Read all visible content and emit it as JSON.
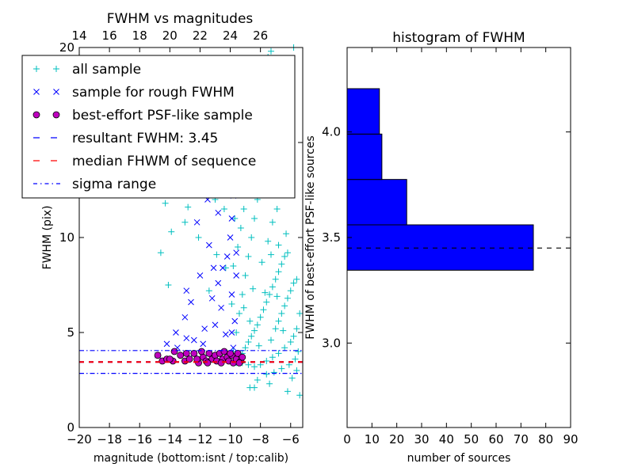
{
  "chart_data": [
    {
      "type": "scatter",
      "title": "FWHM vs magnitudes",
      "xlabel": "magnitude (bottom:isnt / top:calib)",
      "ylabel": "FWHM (pix)",
      "xlim": [
        -20,
        -5.2
      ],
      "ylim": [
        0,
        20
      ],
      "x_ticks": [
        -20,
        -18,
        -16,
        -14,
        -12,
        -10,
        -8,
        -6
      ],
      "x_tick_labels": [
        "−20",
        "−18",
        "−16",
        "−14",
        "−12",
        "−10",
        "−8",
        "−6"
      ],
      "y_ticks": [
        0,
        5,
        10,
        15,
        20
      ],
      "y_tick_labels": [
        "0",
        "5",
        "10",
        "15",
        "20"
      ],
      "top_x_ticks": [
        14,
        16,
        18,
        20,
        22,
        24,
        26
      ],
      "top_x_offset": 34,
      "legend_position": "upper-left",
      "series": [
        {
          "name": "all sample",
          "marker": "+",
          "color": "#00bfbf",
          "points": [
            [
              -9.6,
              3.4
            ],
            [
              -9.4,
              3.6
            ],
            [
              -9.2,
              3.9
            ],
            [
              -9.0,
              4.2
            ],
            [
              -8.8,
              4.5
            ],
            [
              -8.6,
              4.8
            ],
            [
              -8.4,
              5.1
            ],
            [
              -8.2,
              5.4
            ],
            [
              -8.0,
              5.8
            ],
            [
              -7.8,
              6.2
            ],
            [
              -7.6,
              6.6
            ],
            [
              -7.4,
              7.0
            ],
            [
              -7.2,
              7.4
            ],
            [
              -7.0,
              7.8
            ],
            [
              -6.8,
              8.2
            ],
            [
              -6.6,
              8.6
            ],
            [
              -6.4,
              9.0
            ],
            [
              -6.2,
              9.2
            ],
            [
              -9.8,
              4.0
            ],
            [
              -9.6,
              5.0
            ],
            [
              -9.4,
              6.0
            ],
            [
              -9.2,
              7.0
            ],
            [
              -9.0,
              8.0
            ],
            [
              -8.8,
              9.0
            ],
            [
              -8.6,
              10.0
            ],
            [
              -8.4,
              11.0
            ],
            [
              -8.2,
              12.0
            ],
            [
              -8.0,
              13.0
            ],
            [
              -7.8,
              14.0
            ],
            [
              -7.6,
              15.0
            ],
            [
              -9.5,
              9.5
            ],
            [
              -9.3,
              10.5
            ],
            [
              -9.1,
              11.5
            ],
            [
              -8.9,
              12.5
            ],
            [
              -8.7,
              13.5
            ],
            [
              -8.5,
              14.5
            ],
            [
              -8.3,
              15.5
            ],
            [
              -8.1,
              16.5
            ],
            [
              -7.9,
              17.5
            ],
            [
              -7.7,
              18.5
            ],
            [
              -7.5,
              19.5
            ],
            [
              -7.3,
              19.8
            ],
            [
              -7.0,
              5.2
            ],
            [
              -6.8,
              5.6
            ],
            [
              -6.6,
              6.0
            ],
            [
              -6.4,
              6.4
            ],
            [
              -6.2,
              6.8
            ],
            [
              -6.0,
              7.2
            ],
            [
              -5.8,
              7.6
            ],
            [
              -5.6,
              7.8
            ],
            [
              -5.4,
              6.0
            ],
            [
              -5.6,
              5.2
            ],
            [
              -5.8,
              4.8
            ],
            [
              -6.0,
              4.5
            ],
            [
              -6.4,
              4.2
            ],
            [
              -6.8,
              3.9
            ],
            [
              -7.2,
              3.7
            ],
            [
              -7.6,
              3.5
            ],
            [
              -8.0,
              3.3
            ],
            [
              -8.4,
              3.2
            ],
            [
              -8.8,
              3.3
            ],
            [
              -9.2,
              3.4
            ],
            [
              -5.5,
              4.0
            ],
            [
              -5.7,
              3.6
            ],
            [
              -6.1,
              3.3
            ],
            [
              -6.6,
              3.1
            ],
            [
              -7.1,
              2.9
            ],
            [
              -7.6,
              2.8
            ],
            [
              -8.2,
              2.5
            ],
            [
              -8.4,
              2.1
            ],
            [
              -5.6,
              3.0
            ],
            [
              -5.9,
              2.6
            ],
            [
              -5.4,
              1.7
            ],
            [
              -9.9,
              6.5
            ],
            [
              -9.8,
              8.5
            ],
            [
              -9.7,
              11.0
            ],
            [
              -9.6,
              13.0
            ],
            [
              -9.5,
              15.5
            ],
            [
              -9.4,
              17.5
            ],
            [
              -9.7,
              19.0
            ],
            [
              -9.9,
              14.0
            ],
            [
              -7.5,
              9.8
            ],
            [
              -7.2,
              10.8
            ],
            [
              -6.9,
              11.5
            ],
            [
              -6.7,
              12.5
            ],
            [
              -7.1,
              13.6
            ],
            [
              -7.4,
              16.0
            ],
            [
              -7.8,
              18.0
            ],
            [
              -8.6,
              17.0
            ],
            [
              -8.9,
              15.8
            ],
            [
              -7.9,
              8.7
            ],
            [
              -7.3,
              9.1
            ],
            [
              -6.8,
              9.6
            ],
            [
              -6.3,
              10.2
            ],
            [
              -8.5,
              7.3
            ],
            [
              -7.7,
              7.1
            ],
            [
              -6.9,
              6.9
            ],
            [
              -6.5,
              5.1
            ],
            [
              -7.3,
              4.6
            ],
            [
              -8.1,
              4.3
            ],
            [
              -8.7,
              5.6
            ],
            [
              -9.1,
              6.3
            ],
            [
              -10.2,
              16.0
            ],
            [
              -10.4,
              11.5
            ],
            [
              -11.0,
              12.0
            ],
            [
              -12.5,
              13.0
            ],
            [
              -13.4,
              14.5
            ],
            [
              -14.6,
              9.2
            ],
            [
              -14.3,
              11.8
            ],
            [
              -13.9,
              10.3
            ],
            [
              -14.1,
              7.5
            ],
            [
              -13.0,
              10.8
            ],
            [
              -12.1,
              10.0
            ],
            [
              -11.4,
              7.2
            ],
            [
              -11.6,
              12.5
            ],
            [
              -10.9,
              9.1
            ],
            [
              -10.7,
              14.3
            ],
            [
              -10.3,
              8.4
            ],
            [
              -13.6,
              13.4
            ],
            [
              -12.8,
              11.6
            ],
            [
              -12.2,
              14.1
            ],
            [
              -11.8,
              15.2
            ],
            [
              -5.8,
              20.0
            ],
            [
              -6.5,
              19.4
            ],
            [
              -9.3,
              19.0
            ],
            [
              -8.7,
              2.1
            ],
            [
              -7.4,
              2.3
            ],
            [
              -6.2,
              1.9
            ]
          ]
        },
        {
          "name": "sample for rough FWHM",
          "marker": "x",
          "color": "#0000ff",
          "points": [
            [
              -14.8,
              3.8
            ],
            [
              -13.5,
              4.2
            ],
            [
              -12.4,
              4.6
            ],
            [
              -11.7,
              5.2
            ],
            [
              -11.2,
              6.8
            ],
            [
              -10.8,
              7.6
            ],
            [
              -10.5,
              8.4
            ],
            [
              -10.2,
              9.0
            ],
            [
              -10.0,
              10.0
            ],
            [
              -9.9,
              11.0
            ],
            [
              -9.8,
              12.2
            ],
            [
              -9.7,
              13.4
            ],
            [
              -9.6,
              14.2
            ],
            [
              -9.6,
              15.0
            ],
            [
              -9.5,
              16.0
            ],
            [
              -9.5,
              16.8
            ],
            [
              -9.4,
              17.4
            ],
            [
              -9.8,
              18.0
            ],
            [
              -10.1,
              15.2
            ],
            [
              -10.4,
              13.0
            ],
            [
              -10.8,
              11.3
            ],
            [
              -11.4,
              9.6
            ],
            [
              -12.0,
              8.0
            ],
            [
              -12.6,
              6.6
            ],
            [
              -13.0,
              5.8
            ],
            [
              -13.6,
              5.0
            ],
            [
              -14.2,
              4.4
            ],
            [
              -9.9,
              7.0
            ],
            [
              -9.6,
              8.0
            ],
            [
              -9.6,
              9.2
            ],
            [
              -10.6,
              6.3
            ],
            [
              -11.0,
              5.4
            ],
            [
              -11.8,
              4.4
            ],
            [
              -12.4,
              3.9
            ],
            [
              -10.3,
              4.9
            ],
            [
              -9.7,
              5.6
            ],
            [
              -9.8,
              4.2
            ],
            [
              -11.4,
              3.9
            ],
            [
              -12.9,
              4.7
            ],
            [
              -11.5,
              12.0
            ],
            [
              -12.2,
              10.8
            ],
            [
              -10.9,
              16.2
            ],
            [
              -10.4,
              17.0
            ],
            [
              -9.9,
              5.0
            ],
            [
              -11.1,
              8.4
            ],
            [
              -12.9,
              7.2
            ]
          ]
        },
        {
          "name": "best-effort PSF-like sample",
          "marker": "o",
          "color": "#bf00bf",
          "points": [
            [
              -14.8,
              3.8
            ],
            [
              -14.5,
              3.5
            ],
            [
              -14.2,
              3.6
            ],
            [
              -13.7,
              4.0
            ],
            [
              -13.3,
              3.8
            ],
            [
              -13.0,
              3.5
            ],
            [
              -12.7,
              3.6
            ],
            [
              -12.4,
              3.9
            ],
            [
              -12.1,
              3.4
            ],
            [
              -11.8,
              3.7
            ],
            [
              -11.6,
              3.5
            ],
            [
              -11.4,
              3.9
            ],
            [
              -11.2,
              3.6
            ],
            [
              -11.0,
              3.8
            ],
            [
              -10.9,
              3.5
            ],
            [
              -10.7,
              3.9
            ],
            [
              -10.5,
              3.6
            ],
            [
              -10.4,
              4.0
            ],
            [
              -10.2,
              3.7
            ],
            [
              -10.1,
              3.5
            ],
            [
              -9.9,
              3.8
            ],
            [
              -9.8,
              3.4
            ],
            [
              -9.6,
              3.6
            ],
            [
              -9.5,
              3.9
            ],
            [
              -9.3,
              3.5
            ],
            [
              -9.2,
              3.7
            ],
            [
              -13.8,
              3.5
            ],
            [
              -12.9,
              3.9
            ],
            [
              -12.2,
              3.6
            ],
            [
              -11.9,
              4.0
            ],
            [
              -10.6,
              3.4
            ],
            [
              -10.0,
              3.9
            ],
            [
              -9.4,
              3.4
            ],
            [
              -11.5,
              3.4
            ],
            [
              -14.0,
              3.6
            ]
          ]
        }
      ],
      "lines": [
        {
          "name": "resultant FWHM: 3.45",
          "y": 3.45,
          "style": "dashed",
          "color": "#0000ff"
        },
        {
          "name": "median FHWM of sequence",
          "y": 3.45,
          "style": "dashed",
          "color": "#ff0000"
        },
        {
          "name": "sigma range",
          "y": 2.85,
          "style": "dashdot",
          "color": "#0000ff"
        },
        {
          "name": "sigma range",
          "y": 4.05,
          "style": "dashdot",
          "color": "#0000ff"
        }
      ],
      "legend": [
        {
          "label": "all sample",
          "marker": "+",
          "color": "#00bfbf"
        },
        {
          "label": "sample for rough FWHM",
          "marker": "x",
          "color": "#0000ff"
        },
        {
          "label": "best-effort PSF-like sample",
          "marker": "o",
          "color": "#bf00bf"
        },
        {
          "label": "resultant FWHM: 3.45",
          "marker": "dashed",
          "color": "#0000ff"
        },
        {
          "label": "median FHWM of sequence",
          "marker": "dashed",
          "color": "#ff0000"
        },
        {
          "label": "sigma range",
          "marker": "dashdot",
          "color": "#0000ff"
        }
      ]
    },
    {
      "type": "bar",
      "orientation": "horizontal",
      "title": "histogram of FWHM",
      "xlabel": "number of sources",
      "ylabel": "FWHM of best-effort PSF-like sources",
      "xlim": [
        0,
        90
      ],
      "ylim": [
        2.6,
        4.4
      ],
      "x_ticks": [
        0,
        10,
        20,
        30,
        40,
        50,
        60,
        70,
        80,
        90
      ],
      "y_ticks": [
        3.0,
        3.5,
        4.0
      ],
      "y_tick_labels": [
        "3.0",
        "3.5",
        "4.0"
      ],
      "bar_color": "#0000ff",
      "bins": [
        {
          "low": 3.345,
          "high": 3.56,
          "count": 75
        },
        {
          "low": 3.56,
          "high": 3.775,
          "count": 24
        },
        {
          "low": 3.775,
          "high": 3.99,
          "count": 14
        },
        {
          "low": 3.99,
          "high": 4.205,
          "count": 13
        }
      ],
      "reference_line": {
        "y": 3.45,
        "style": "dashed",
        "color": "#000000"
      }
    }
  ]
}
